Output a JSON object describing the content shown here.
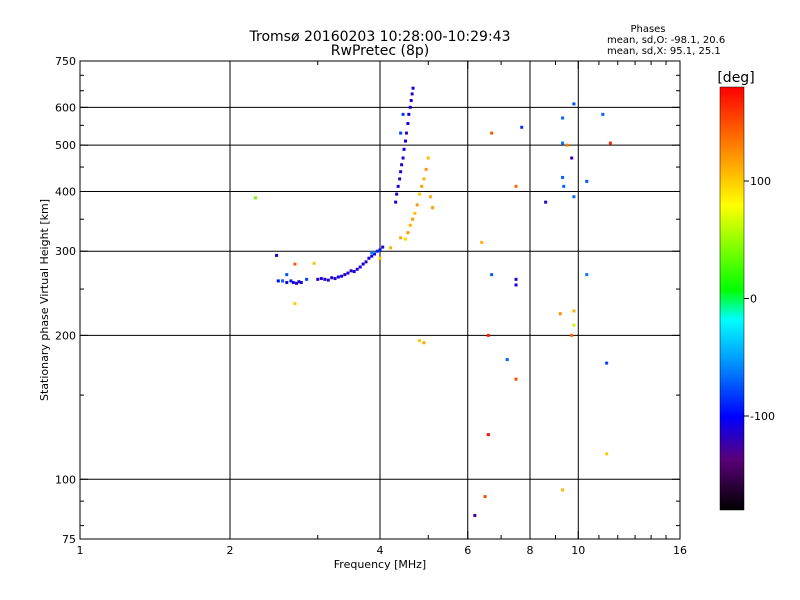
{
  "chart_data": {
    "type": "scatter",
    "title_line1": "Tromsø 20160203 10:28:00-10:29:43",
    "title_line2": "RwPretec (8p)",
    "xlabel": "Frequency [MHz]",
    "ylabel": "Stationary phase Virtual Height [km]",
    "x_scale": "log2",
    "y_scale": "log",
    "xlim": [
      1,
      16
    ],
    "ylim": [
      75,
      750
    ],
    "x_ticks": [
      1,
      2,
      4,
      6,
      8,
      10,
      16
    ],
    "x_grid": [
      2,
      4,
      6,
      8,
      10
    ],
    "y_ticks": [
      75,
      100,
      200,
      300,
      400,
      500,
      600,
      750
    ],
    "y_grid": [
      100,
      200,
      300,
      400,
      500,
      600
    ],
    "phase_box": {
      "heading": "Phases",
      "line_o": "mean, sd,O: -98.1, 20.6",
      "line_x": "mean, sd,X:  95.1, 25.1"
    },
    "colorbar": {
      "unit": "[deg]",
      "range": [
        -180,
        180
      ],
      "ticks": [
        100,
        0,
        -100
      ]
    },
    "series": [
      {
        "values": [
          [
            2.48,
            294,
            -110
          ],
          [
            2.5,
            260,
            -100
          ],
          [
            2.55,
            260,
            -115
          ],
          [
            2.6,
            258,
            -110
          ],
          [
            2.65,
            260,
            -95
          ],
          [
            2.68,
            258,
            -105
          ],
          [
            2.72,
            257,
            -118
          ],
          [
            2.75,
            259,
            -112
          ],
          [
            2.78,
            258,
            -108
          ],
          [
            3.0,
            262,
            -112
          ],
          [
            3.05,
            263,
            -120
          ],
          [
            3.1,
            262,
            -105
          ],
          [
            3.15,
            261,
            -115
          ],
          [
            3.2,
            264,
            -110
          ],
          [
            3.25,
            263,
            -118
          ],
          [
            3.3,
            265,
            -108
          ],
          [
            3.35,
            266,
            -112
          ],
          [
            3.4,
            268,
            -115
          ],
          [
            3.45,
            270,
            -110
          ],
          [
            3.5,
            273,
            -120
          ],
          [
            3.55,
            272,
            -105
          ],
          [
            3.6,
            275,
            -112
          ],
          [
            3.65,
            278,
            -115
          ],
          [
            3.7,
            282,
            -108
          ],
          [
            3.75,
            285,
            -118
          ],
          [
            3.8,
            290,
            -110
          ],
          [
            3.85,
            293,
            -112
          ],
          [
            3.9,
            296,
            -98
          ],
          [
            3.95,
            300,
            -88
          ],
          [
            4.0,
            302,
            -95
          ],
          [
            4.05,
            306,
            -115
          ],
          [
            4.3,
            380,
            -110
          ],
          [
            4.32,
            395,
            -115
          ],
          [
            4.35,
            410,
            -112
          ],
          [
            4.38,
            425,
            -118
          ],
          [
            4.4,
            440,
            -110
          ],
          [
            4.42,
            455,
            -115
          ],
          [
            4.45,
            470,
            -112
          ],
          [
            4.47,
            490,
            -105
          ],
          [
            4.5,
            510,
            -110
          ],
          [
            4.52,
            530,
            -118
          ],
          [
            4.55,
            555,
            -112
          ],
          [
            4.57,
            580,
            -110
          ],
          [
            4.6,
            600,
            -115
          ],
          [
            4.62,
            620,
            -112
          ],
          [
            4.64,
            640,
            -118
          ],
          [
            4.66,
            658,
            -110
          ],
          [
            7.5,
            255,
            -110
          ],
          [
            7.5,
            262,
            -118
          ],
          [
            8.6,
            380,
            -118
          ],
          [
            9.7,
            470,
            -125
          ],
          [
            6.2,
            84,
            -125
          ]
        ]
      },
      {
        "values": [
          [
            2.25,
            388,
            40
          ],
          [
            2.55,
            260,
            -70
          ],
          [
            2.6,
            268,
            -75
          ],
          [
            2.85,
            262,
            -80
          ],
          [
            3.85,
            298,
            -60
          ],
          [
            4.4,
            530,
            -80
          ],
          [
            4.45,
            580,
            -85
          ],
          [
            7.7,
            545,
            -85
          ],
          [
            9.3,
            570,
            -70
          ],
          [
            9.8,
            610,
            -75
          ],
          [
            9.3,
            505,
            -65
          ],
          [
            9.3,
            428,
            -72
          ],
          [
            9.35,
            410,
            -68
          ],
          [
            9.8,
            390,
            -70
          ],
          [
            10.4,
            420,
            -75
          ],
          [
            11.2,
            580,
            -70
          ],
          [
            10.4,
            268,
            -65
          ],
          [
            6.7,
            268,
            -72
          ],
          [
            7.2,
            178,
            -70
          ],
          [
            11.4,
            175,
            -80
          ],
          [
            9.8,
            210,
            60
          ]
        ]
      },
      {
        "values": [
          [
            2.7,
            282,
            145
          ],
          [
            2.7,
            233,
            100
          ],
          [
            2.95,
            283,
            100
          ],
          [
            4.0,
            290,
            100
          ],
          [
            4.2,
            305,
            110
          ],
          [
            4.4,
            320,
            115
          ],
          [
            4.5,
            318,
            95
          ],
          [
            4.55,
            328,
            120
          ],
          [
            4.6,
            340,
            110
          ],
          [
            4.65,
            350,
            118
          ],
          [
            4.7,
            360,
            105
          ],
          [
            4.75,
            375,
            120
          ],
          [
            4.8,
            395,
            100
          ],
          [
            4.85,
            410,
            118
          ],
          [
            4.9,
            425,
            110
          ],
          [
            4.95,
            445,
            120
          ],
          [
            5.0,
            470,
            105
          ],
          [
            5.05,
            390,
            112
          ],
          [
            5.1,
            370,
            118
          ],
          [
            4.8,
            195,
            100
          ],
          [
            4.9,
            193,
            115
          ],
          [
            6.4,
            313,
            110
          ],
          [
            6.7,
            530,
            145
          ],
          [
            7.5,
            410,
            140
          ],
          [
            9.2,
            222,
            125
          ],
          [
            9.7,
            200,
            140
          ],
          [
            9.8,
            225,
            110
          ],
          [
            9.3,
            95,
            110
          ],
          [
            11.4,
            113,
            100
          ],
          [
            11.6,
            505,
            165
          ],
          [
            6.5,
            92,
            150
          ],
          [
            7.5,
            162,
            150
          ],
          [
            6.6,
            200,
            170
          ],
          [
            6.6,
            124,
            175
          ],
          [
            9.5,
            500,
            130
          ]
        ]
      }
    ]
  }
}
